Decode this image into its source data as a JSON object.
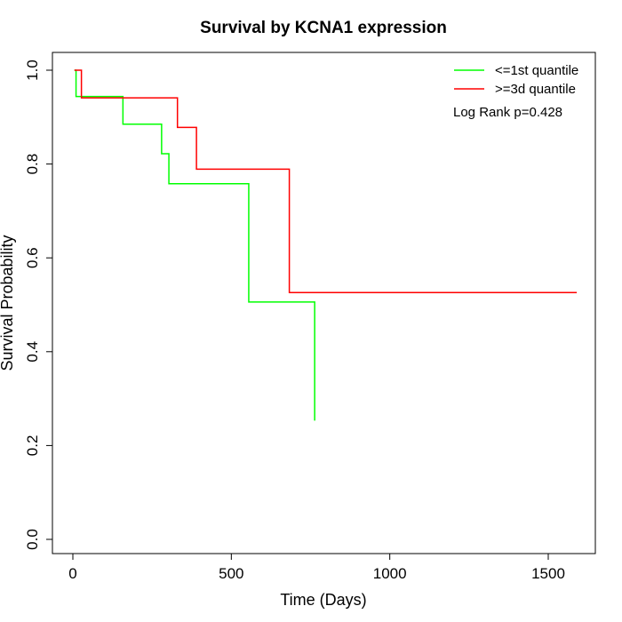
{
  "chart_data": {
    "type": "line",
    "title": "Survival by KCNA1 expression",
    "xlabel": "Time (Days)",
    "ylabel": "Survival Probability",
    "xlim": [
      0,
      1600
    ],
    "ylim": [
      0,
      1
    ],
    "x_ticks": [
      0,
      500,
      1000,
      1500
    ],
    "y_ticks": [
      0.0,
      0.2,
      0.4,
      0.6,
      0.8,
      1.0
    ],
    "x_tick_labels": [
      "0",
      "500",
      "1000",
      "1500"
    ],
    "y_tick_labels": [
      "0.0",
      "0.2",
      "0.4",
      "0.6",
      "0.8",
      "1.0"
    ],
    "grid": false,
    "legend_position": "top-right",
    "annotation": "Log Rank p=0.428",
    "series": [
      {
        "name": "<=1st quantile",
        "color": "#00ff00",
        "step_points": [
          [
            5,
            1.0
          ],
          [
            10,
            0.944
          ],
          [
            158,
            0.885
          ],
          [
            280,
            0.822
          ],
          [
            303,
            0.758
          ],
          [
            555,
            0.506
          ],
          [
            763,
            0.253
          ]
        ]
      },
      {
        "name": ">=3d quantile",
        "color": "#ff0000",
        "step_points": [
          [
            5,
            1.0
          ],
          [
            27,
            0.941
          ],
          [
            330,
            0.878
          ],
          [
            390,
            0.789
          ],
          [
            683,
            0.526
          ],
          [
            1590,
            0.526
          ]
        ]
      }
    ]
  }
}
